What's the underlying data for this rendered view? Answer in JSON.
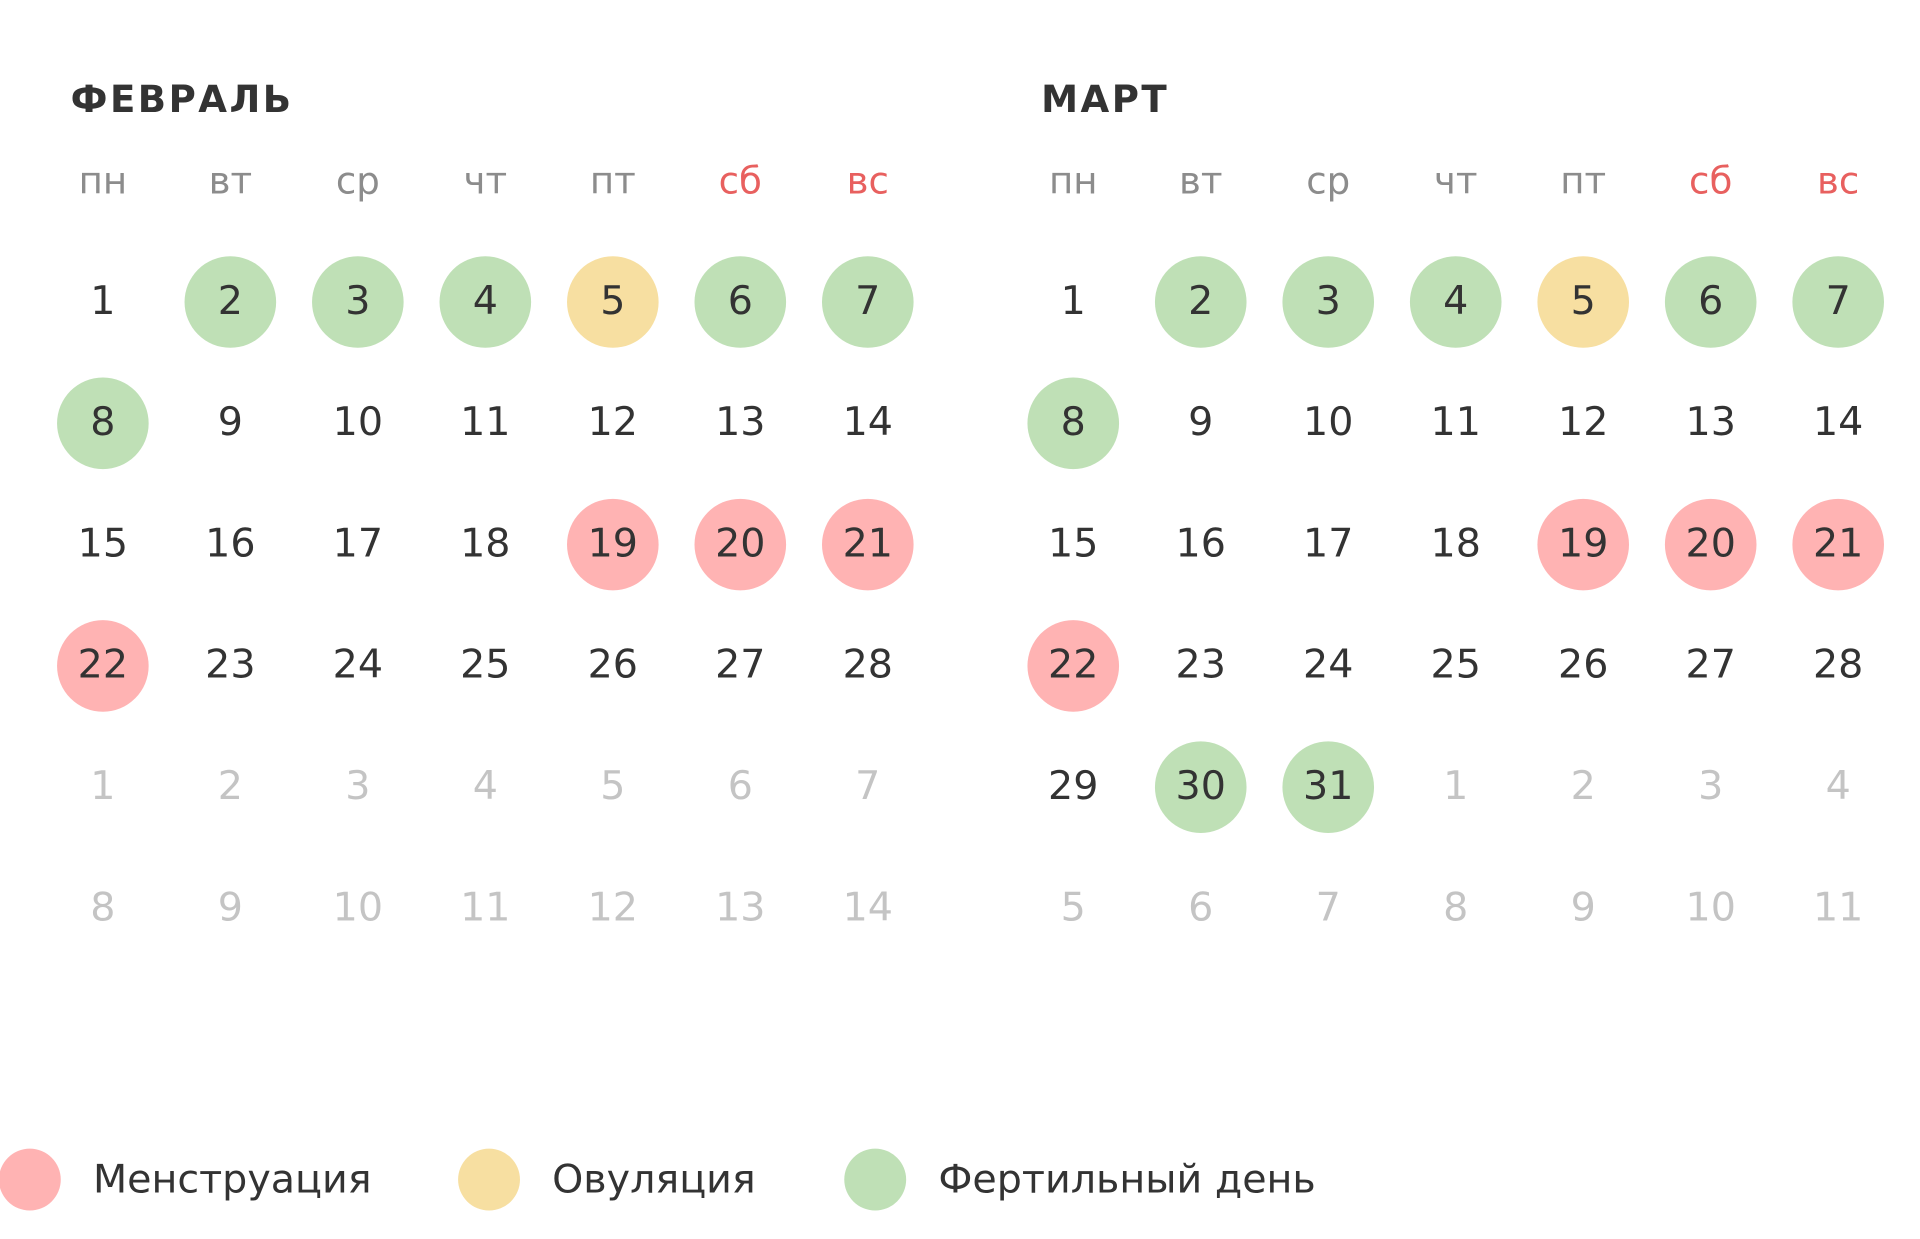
{
  "colors": {
    "text": "#333333",
    "muted": "#c4c4c4",
    "weekday": "#8c8c8c"
  },
  "months": [
    {
      "title": "ФЕВРАЛЬ",
      "weekdays": [
        "пн",
        "вт",
        "ср",
        "чт",
        "пт",
        {
          "label": "сб",
          "color": "#e8605f"
        },
        {
          "label": "вс",
          "color": "#e8605f"
        }
      ],
      "weeks": [
        [
          {
            "day": "1"
          },
          {
            "day": "2",
            "fill": "#bfe0b6"
          },
          {
            "day": "3",
            "fill": "#bfe0b6"
          },
          {
            "day": "4",
            "fill": "#bfe0b6"
          },
          {
            "day": "5",
            "fill": "#f7dfa1"
          },
          {
            "day": "6",
            "fill": "#bfe0b6"
          },
          {
            "day": "7",
            "fill": "#bfe0b6"
          }
        ],
        [
          {
            "day": "8",
            "fill": "#bfe0b6"
          },
          {
            "day": "9"
          },
          {
            "day": "10"
          },
          {
            "day": "11"
          },
          {
            "day": "12"
          },
          {
            "day": "13"
          },
          {
            "day": "14"
          }
        ],
        [
          {
            "day": "15"
          },
          {
            "day": "16"
          },
          {
            "day": "17"
          },
          {
            "day": "18"
          },
          {
            "day": "19",
            "fill": "#ffb3b3"
          },
          {
            "day": "20",
            "fill": "#ffb3b3"
          },
          {
            "day": "21",
            "fill": "#ffb3b3"
          }
        ],
        [
          {
            "day": "22",
            "fill": "#ffb3b3"
          },
          {
            "day": "23"
          },
          {
            "day": "24"
          },
          {
            "day": "25"
          },
          {
            "day": "26"
          },
          {
            "day": "27"
          },
          {
            "day": "28"
          }
        ],
        [
          {
            "day": "1",
            "muted": true
          },
          {
            "day": "2",
            "muted": true
          },
          {
            "day": "3",
            "muted": true
          },
          {
            "day": "4",
            "muted": true
          },
          {
            "day": "5",
            "muted": true
          },
          {
            "day": "6",
            "muted": true
          },
          {
            "day": "7",
            "muted": true
          }
        ],
        [
          {
            "day": "8",
            "muted": true
          },
          {
            "day": "9",
            "muted": true
          },
          {
            "day": "10",
            "muted": true
          },
          {
            "day": "11",
            "muted": true
          },
          {
            "day": "12",
            "muted": true
          },
          {
            "day": "13",
            "muted": true
          },
          {
            "day": "14",
            "muted": true
          }
        ]
      ]
    },
    {
      "title": "МАРТ",
      "weekdays": [
        "пн",
        "вт",
        "ср",
        "чт",
        "пт",
        {
          "label": "сб",
          "color": "#e8605f"
        },
        {
          "label": "вс",
          "color": "#e8605f"
        }
      ],
      "weeks": [
        [
          {
            "day": "1"
          },
          {
            "day": "2",
            "fill": "#bfe0b6"
          },
          {
            "day": "3",
            "fill": "#bfe0b6"
          },
          {
            "day": "4",
            "fill": "#bfe0b6"
          },
          {
            "day": "5",
            "fill": "#f7dfa1"
          },
          {
            "day": "6",
            "fill": "#bfe0b6"
          },
          {
            "day": "7",
            "fill": "#bfe0b6"
          }
        ],
        [
          {
            "day": "8",
            "fill": "#bfe0b6"
          },
          {
            "day": "9"
          },
          {
            "day": "10"
          },
          {
            "day": "11"
          },
          {
            "day": "12"
          },
          {
            "day": "13"
          },
          {
            "day": "14"
          }
        ],
        [
          {
            "day": "15"
          },
          {
            "day": "16"
          },
          {
            "day": "17"
          },
          {
            "day": "18"
          },
          {
            "day": "19",
            "fill": "#ffb3b3"
          },
          {
            "day": "20",
            "fill": "#ffb3b3"
          },
          {
            "day": "21",
            "fill": "#ffb3b3"
          }
        ],
        [
          {
            "day": "22",
            "fill": "#ffb3b3"
          },
          {
            "day": "23"
          },
          {
            "day": "24"
          },
          {
            "day": "25"
          },
          {
            "day": "26"
          },
          {
            "day": "27"
          },
          {
            "day": "28"
          }
        ],
        [
          {
            "day": "29"
          },
          {
            "day": "30",
            "fill": "#bfe0b6"
          },
          {
            "day": "31",
            "fill": "#bfe0b6"
          },
          {
            "day": "1",
            "muted": true
          },
          {
            "day": "2",
            "muted": true
          },
          {
            "day": "3",
            "muted": true
          },
          {
            "day": "4",
            "muted": true
          }
        ],
        [
          {
            "day": "5",
            "muted": true
          },
          {
            "day": "6",
            "muted": true
          },
          {
            "day": "7",
            "muted": true
          },
          {
            "day": "8",
            "muted": true
          },
          {
            "day": "9",
            "muted": true
          },
          {
            "day": "10",
            "muted": true
          },
          {
            "day": "11",
            "muted": true
          }
        ]
      ]
    }
  ],
  "legend": [
    {
      "label": "Менструация",
      "color": "#ffb3b3"
    },
    {
      "label": "Овуляция",
      "color": "#f7dfa1"
    },
    {
      "label": "Фертильный день",
      "color": "#bfe0b6"
    }
  ]
}
